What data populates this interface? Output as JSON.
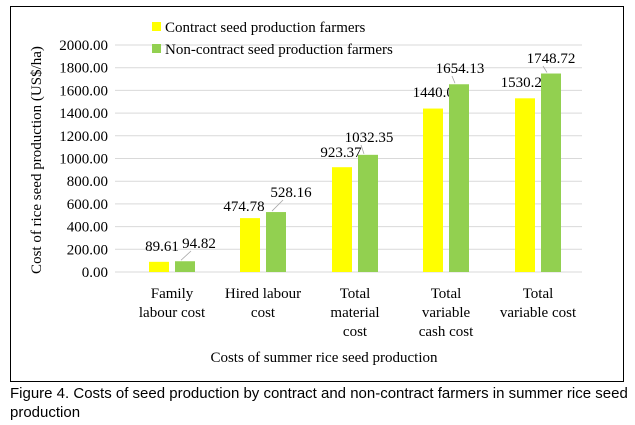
{
  "chart_data": {
    "type": "bar",
    "categories": [
      [
        "Family",
        "labour cost"
      ],
      [
        "Hired labour",
        "cost"
      ],
      [
        "Total",
        "material",
        "cost"
      ],
      [
        "Total",
        "variable",
        "cash cost"
      ],
      [
        "Total",
        "variable cost"
      ]
    ],
    "series": [
      {
        "name": "Contract seed production farmers",
        "color": "#FFFF00",
        "values": [
          89.61,
          474.78,
          923.37,
          1440.09,
          1530.25
        ],
        "labels": [
          "89.61",
          "474.78",
          "923.37",
          "1440.09",
          "1530.25"
        ]
      },
      {
        "name": "Non-contract seed production farmers",
        "color": "#92D050",
        "values": [
          94.82,
          528.16,
          1032.35,
          1654.13,
          1748.72
        ],
        "labels": [
          "94.82",
          "528.16",
          "1032.35",
          "1654.13",
          "1748.72"
        ]
      }
    ],
    "xlabel": "Costs of summer rice seed production",
    "ylabel": "Cost of rice seed production (US$/ha)",
    "ylim": [
      0,
      2000
    ],
    "yticks": [
      "0.00",
      "200.00",
      "400.00",
      "600.00",
      "800.00",
      "1000.00",
      "1200.00",
      "1400.00",
      "1600.00",
      "1800.00",
      "2000.00"
    ],
    "grid": true,
    "gridline_color": "#D9D9D9",
    "legend_position": "top-center"
  },
  "caption": "Figure 4. Costs of seed production by contract and non-contract farmers in summer rice seed production"
}
